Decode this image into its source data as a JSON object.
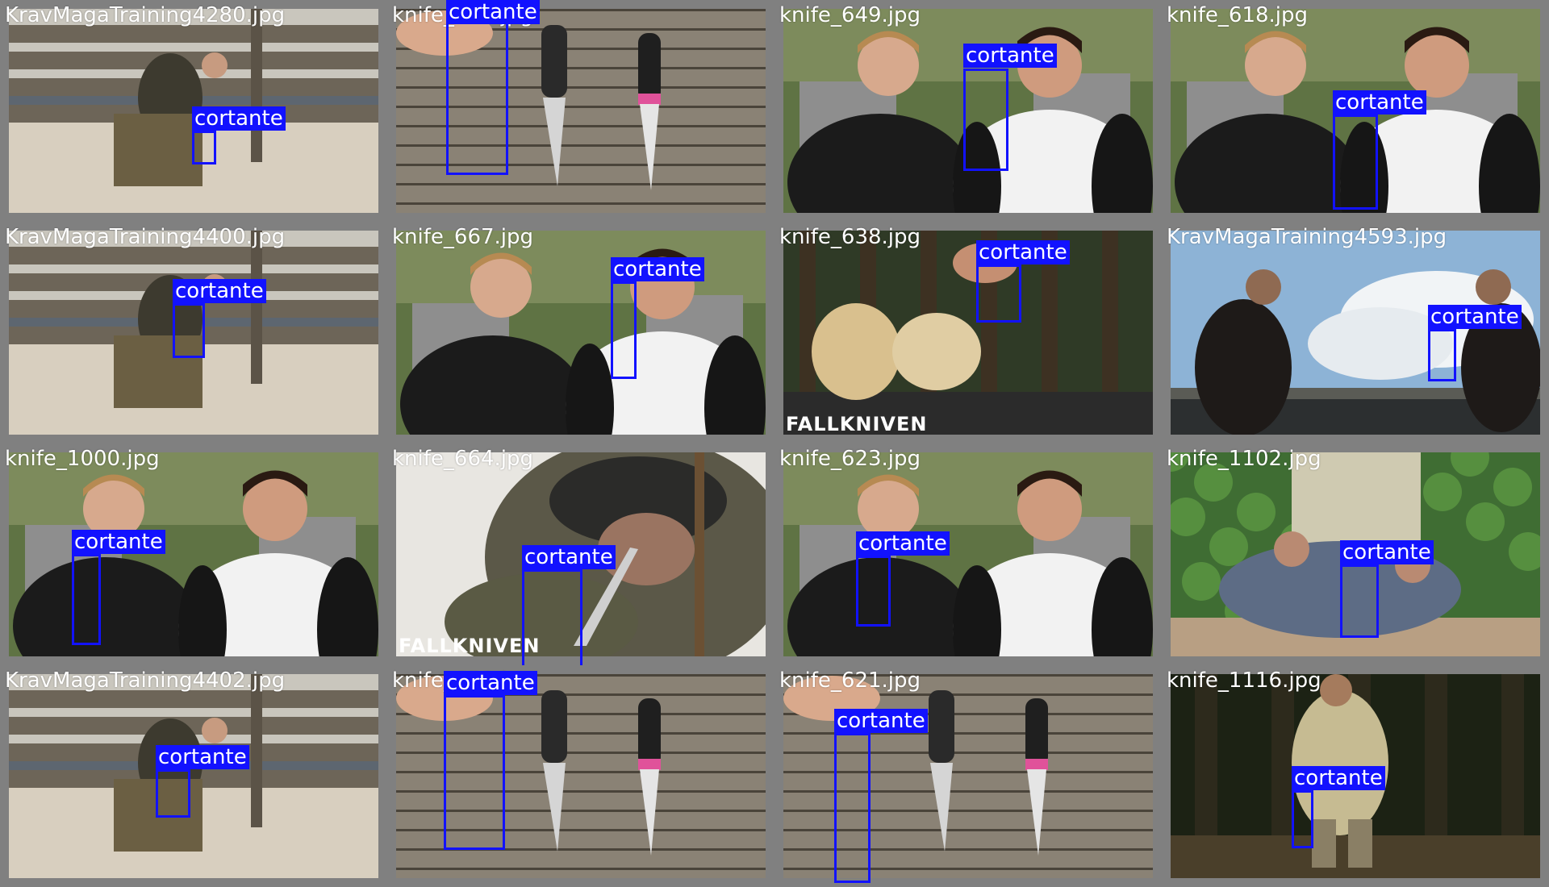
{
  "label_color": "#1212ff",
  "label_text": "cortante",
  "tiles": [
    {
      "file": "KravMagaTraining4280.jpg",
      "scene": "fence",
      "caption": "",
      "label": "cortante"
    },
    {
      "file": "knife_688.jpg",
      "scene": "wood",
      "caption": "",
      "label": "cortante"
    },
    {
      "file": "knife_649.jpg",
      "scene": "people",
      "caption": "",
      "label": "cortante"
    },
    {
      "file": "knife_618.jpg",
      "scene": "people",
      "caption": "",
      "label": "cortante"
    },
    {
      "file": "KravMagaTraining4400.jpg",
      "scene": "fence",
      "caption": "",
      "label": "cortante"
    },
    {
      "file": "knife_667.jpg",
      "scene": "people",
      "caption": "",
      "label": "cortante"
    },
    {
      "file": "knife_638.jpg",
      "scene": "forest",
      "caption": "FALLKNIVEN",
      "label": "cortante"
    },
    {
      "file": "KravMagaTraining4593.jpg",
      "scene": "sky",
      "caption": "",
      "label": "cortante"
    },
    {
      "file": "knife_1000.jpg",
      "scene": "people",
      "caption": "",
      "label": "cortante"
    },
    {
      "file": "knife_664.jpg",
      "scene": "helmet",
      "caption": "FALLKNIVEN",
      "label": "cortante"
    },
    {
      "file": "knife_623.jpg",
      "scene": "people",
      "caption": "",
      "label": "cortante"
    },
    {
      "file": "knife_1102.jpg",
      "scene": "bush",
      "caption": "",
      "label": "cortante"
    },
    {
      "file": "KravMagaTraining4402.jpg",
      "scene": "fence",
      "caption": "",
      "label": "cortante"
    },
    {
      "file": "knife_659.jpg",
      "scene": "wood",
      "caption": "",
      "label": "cortante"
    },
    {
      "file": "knife_621.jpg",
      "scene": "wood",
      "caption": "",
      "label": "cortante"
    },
    {
      "file": "knife_1116.jpg",
      "scene": "darkforest",
      "caption": "",
      "label": "cortante"
    }
  ]
}
